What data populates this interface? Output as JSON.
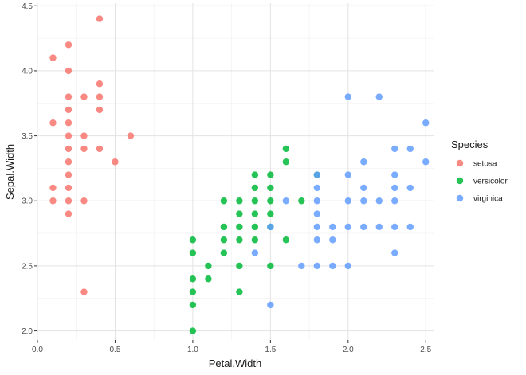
{
  "chart_data": {
    "type": "scatter",
    "title": "",
    "xlabel": "Petal.Width",
    "ylabel": "Sepal.Width",
    "xlim": [
      0,
      2.55
    ],
    "ylim": [
      1.93,
      4.52
    ],
    "x_ticks": [
      "0.0",
      "0.5",
      "1.0",
      "1.5",
      "2.0",
      "2.5"
    ],
    "y_ticks": [
      "2.0",
      "2.5",
      "3.0",
      "3.5",
      "4.0",
      "4.5"
    ],
    "grid": true,
    "legend": {
      "title": "Species",
      "placement": "right"
    },
    "series": [
      {
        "name": "setosa",
        "color": "#F8766D",
        "points": [
          [
            0.1,
            4.1
          ],
          [
            0.1,
            3.6
          ],
          [
            0.1,
            3.1
          ],
          [
            0.1,
            3.0
          ],
          [
            0.2,
            4.2
          ],
          [
            0.2,
            4.0
          ],
          [
            0.2,
            3.8
          ],
          [
            0.2,
            3.7
          ],
          [
            0.2,
            3.6
          ],
          [
            0.2,
            3.5
          ],
          [
            0.2,
            3.4
          ],
          [
            0.2,
            3.3
          ],
          [
            0.2,
            3.2
          ],
          [
            0.2,
            3.1
          ],
          [
            0.2,
            3.0
          ],
          [
            0.2,
            2.9
          ],
          [
            0.3,
            3.8
          ],
          [
            0.3,
            3.5
          ],
          [
            0.3,
            3.4
          ],
          [
            0.3,
            3.0
          ],
          [
            0.3,
            2.3
          ],
          [
            0.4,
            4.4
          ],
          [
            0.4,
            3.9
          ],
          [
            0.4,
            3.8
          ],
          [
            0.4,
            3.7
          ],
          [
            0.4,
            3.4
          ],
          [
            0.5,
            3.3
          ],
          [
            0.6,
            3.5
          ]
        ]
      },
      {
        "name": "versicolor",
        "color": "#00BA38",
        "points": [
          [
            1.0,
            2.7
          ],
          [
            1.0,
            2.6
          ],
          [
            1.0,
            2.4
          ],
          [
            1.0,
            2.3
          ],
          [
            1.0,
            2.2
          ],
          [
            1.0,
            2.0
          ],
          [
            1.1,
            2.5
          ],
          [
            1.1,
            2.4
          ],
          [
            1.2,
            3.0
          ],
          [
            1.2,
            2.8
          ],
          [
            1.2,
            2.7
          ],
          [
            1.2,
            2.6
          ],
          [
            1.3,
            3.0
          ],
          [
            1.3,
            2.9
          ],
          [
            1.3,
            2.8
          ],
          [
            1.3,
            2.7
          ],
          [
            1.3,
            2.5
          ],
          [
            1.3,
            2.3
          ],
          [
            1.4,
            3.2
          ],
          [
            1.4,
            3.1
          ],
          [
            1.4,
            3.0
          ],
          [
            1.4,
            2.9
          ],
          [
            1.4,
            2.8
          ],
          [
            1.4,
            2.7
          ],
          [
            1.5,
            3.2
          ],
          [
            1.5,
            3.1
          ],
          [
            1.5,
            3.0
          ],
          [
            1.5,
            2.9
          ],
          [
            1.5,
            2.8
          ],
          [
            1.5,
            2.5
          ],
          [
            1.6,
            3.4
          ],
          [
            1.6,
            3.3
          ],
          [
            1.6,
            2.7
          ],
          [
            1.7,
            3.0
          ],
          [
            1.8,
            3.2
          ]
        ]
      },
      {
        "name": "virginica",
        "color": "#619CFF",
        "points": [
          [
            1.4,
            2.6
          ],
          [
            1.5,
            2.8
          ],
          [
            1.5,
            2.2
          ],
          [
            1.6,
            3.0
          ],
          [
            1.7,
            2.5
          ],
          [
            1.8,
            3.2
          ],
          [
            1.8,
            3.1
          ],
          [
            1.8,
            3.0
          ],
          [
            1.8,
            2.9
          ],
          [
            1.8,
            2.8
          ],
          [
            1.8,
            2.7
          ],
          [
            1.8,
            2.5
          ],
          [
            1.9,
            2.8
          ],
          [
            1.9,
            2.7
          ],
          [
            1.9,
            2.5
          ],
          [
            2.0,
            3.8
          ],
          [
            2.0,
            3.2
          ],
          [
            2.0,
            3.0
          ],
          [
            2.0,
            2.8
          ],
          [
            2.0,
            2.5
          ],
          [
            2.1,
            3.3
          ],
          [
            2.1,
            3.1
          ],
          [
            2.1,
            3.0
          ],
          [
            2.1,
            2.8
          ],
          [
            2.2,
            3.8
          ],
          [
            2.2,
            3.0
          ],
          [
            2.2,
            2.8
          ],
          [
            2.3,
            3.4
          ],
          [
            2.3,
            3.2
          ],
          [
            2.3,
            3.1
          ],
          [
            2.3,
            3.0
          ],
          [
            2.3,
            2.8
          ],
          [
            2.3,
            2.6
          ],
          [
            2.4,
            3.4
          ],
          [
            2.4,
            3.1
          ],
          [
            2.4,
            2.8
          ],
          [
            2.5,
            3.6
          ],
          [
            2.5,
            3.3
          ]
        ]
      }
    ]
  }
}
